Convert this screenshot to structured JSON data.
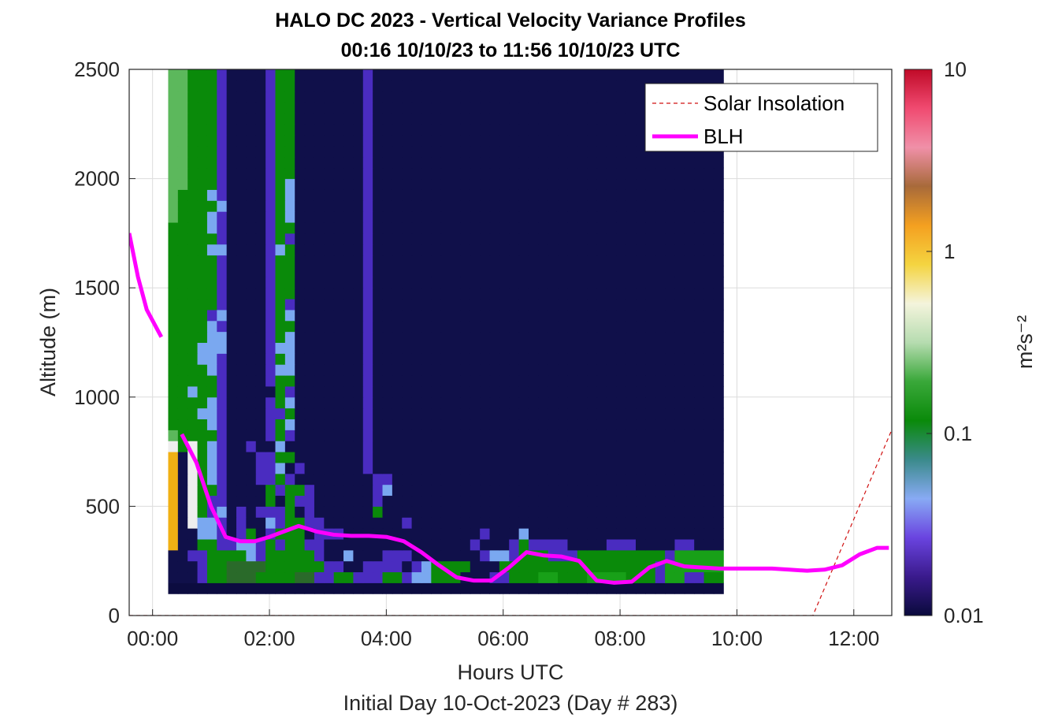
{
  "chart_data": {
    "type": "heatmap",
    "title": "HALO DC 2023 - Vertical Velocity Variance Profiles",
    "subtitle": "00:16 10/10/23 to 11:56 10/10/23  UTC",
    "xlabel": "Hours UTC",
    "xlabel2": "Initial Day 10-Oct-2023 (Day # 283)",
    "ylabel": "Altitude (m)",
    "xlim": [
      -0.4,
      12.65
    ],
    "ylim": [
      0,
      2500
    ],
    "x_ticks": [
      0,
      2,
      4,
      6,
      8,
      10,
      12
    ],
    "x_tick_labels": [
      "00:00",
      "02:00",
      "04:00",
      "06:00",
      "08:00",
      "10:00",
      "12:00"
    ],
    "y_ticks": [
      0,
      500,
      1000,
      1500,
      2000,
      2500
    ],
    "y_tick_labels": [
      "0",
      "500",
      "1000",
      "1500",
      "2000",
      "2500"
    ],
    "grid": true,
    "legend_position": "top-right",
    "colorbar": {
      "label": "m²s⁻²",
      "scale": "log",
      "range": [
        0.01,
        10
      ],
      "ticks": [
        0.01,
        0.1,
        1,
        10
      ],
      "tick_labels": [
        "0.01",
        "0.1",
        "1",
        "10"
      ],
      "colors": [
        "#0a0a3c",
        "#3a1a8c",
        "#6a44e0",
        "#88aaf4",
        "#3a8a8a",
        "#0a8a0a",
        "#3aa83a",
        "#b6dcb0",
        "#f4f4dc",
        "#f4d440",
        "#f4a020",
        "#a86a3a",
        "#f090a8",
        "#f04a70",
        "#c00a28"
      ]
    },
    "grid_x_start": 0.267,
    "grid_dx": 0.1667,
    "grid_y_start": 100,
    "grid_dy": 50,
    "variance_rows_bottom_to_top": [
      "0000000000000000000000000000000000000000000000000000000000000",
      "bbbpggrrrggggrrppggpppggpwwgggbbbppgggffgggffffgggpffppgggggg",
      "bbbpggrrrrggggggppbbppppbpwggggbbbggggggggggggggggpffffffggff",
      "bbppggggwpgggggpbbwbbbpppbbbbbbbpwwpgggpppgggggggggpffffffbpf",
      "abbggppwwpgpggppbbbbbbbbbbbbbbbpbbbpgppppbbbbpppbbbbppbbbbgpp",
      "abbwwpbpgbpgggbpppbbbbbbbbbbbbbbpbbbwbbbbbbbbbbbbbbbbbbbbbbpp",
      "ab.wwpbpbbwpggppbbbbbbbbpbbbbbbbbbbbbbbbbbbbbbbbbbbbbbbbbbpbp",
      "ab.gpwbpbpppgbpbbbbbbgbbbbbbbbbbbbbbbbbbbbbbbbbbbbbbbbbbbbbbb",
      "ab.gppbbbbgbgppbbbbbbpbbbbbbbbbbbbbbbbbbbbbbbbbbbbbbbbbbbbbbb",
      "ab.ggpbbbbgpggpbbbbbbpwbbbbbbbbbbbbbbbbbbbbbbbbbbbbbbbbbbbbbb",
      "ab.gwpbbbppgpbbbbbbbbppbbbbbbbbbbbbbbbbbbbbbbbbbbbbbbbbbbbbbb",
      "ab.gwpbbbppwbpbbbbbbpbbbbbbbbbbbbbbbbbbbbbbbbbbbbbbbbbbbbbbbb",
      "ab.gwpbbbppggbbbbbbbpbbbbbbbbbbbbbbbbbbbbbbbbbbbbbbbbbbbbbbbb",
      ".g.gwpbbpbbwbbbbbbbbpbbbbbbbbbbbbbbbbbbbbbbbbbbbbbbbbbbbbbbbb",
      "lggggpbbbbpgpbbbbbbbpbbbbbbbbbbbbbbbbbbbbbbbbbbbbbbbbbbbbbbbb",
      "ggggwpbbbbpgwbbbbbbbpbbbbbbbbbbbbbbbbbbbbbbbbbbbbbbbbbbbbbbbb",
      "gggwwpbbbbppgbbbbbbbpbbbbbbbbbbbbbbbbbbbbbbbbbbbbbbbbbbbbbbbb",
      "ggggwpbbbbpgwbbbbbbbpbbbbbbbbbbbbbbbbbbbbbbbbbbbbbbbbbbbbbbbb",
      "ggwggpbbbbbgpbbbbbbbpbbbbbbbbbbbbbbbbbbbbbbbbbbbbbbbbbbbbbbbb",
      "gggggpbbbbpggbbbbbbbpbbbbbbbbbbbbbbbbbbbbbbbbbbbbbbbbbbbbbbbb",
      "ggggwpbbbbpwwbbbbbbbpbbbbbbbbbbbbbbbbbbbbbbbbbbbbbbbbbbbbbbbb",
      "gggwwpbbbbpgwbbbbbbbpbbbbbbbbbbbbbbbbbbbbbbbbbbbbbbbbbbbbbbbb",
      "gggwwwbbbbpwwbbbbbbbpbbbbbbbbbbbbbbbbbbbbbbbbbbbbbbbbbbbbbbbb",
      "ggggwwbbbbpgwbbbbbbbpbbbbbbbbbbbbbbbbbbbbbbbbbbbbbbbbbbbbbbbb",
      "ggggwpbbbbpggbbbbbbbpbbbbbbbbbbbbbbbbbbbbbbbbbbbbbbbbbbbbbbbb",
      "ggggpwbbbbpgwbbbbbbbpbbbbbbbbbbbbbbbbbbbbbbbbbbbbbbbbbbbbbbbb",
      "gggggpbbbbpgpbbbbbbbpbbbbbbbbbbbbbbbbbbbbbbbbbbbbbbbbbbbbbbbb",
      "gggggpbbbbpggbbbbbbbpbbbbbbbbbbbbbbbbbbbbbbbbbbbbbbbbbbbbbbbb",
      "gggggpbbbbpggbbbbbbbpbbbbbbbbbbbbbbbbbbbbbbbbbbbbbbbbbbbbbbbb",
      "gggggpbbbbpggbbbbbbbpbbbbbbbbbbbbbbbbbbbbbbbbbbbbbbbbbbbbbbbb",
      "gggggpbbbbpggbbbbbbbpbbbbbbbbbbbbbbbbbbbbbbbbbbbbbbbbbbbbbbbb",
      "ggggwwbbbbpwgbbbbbbbpbbbbbbbbbbbbbbbbbbbbbbbbbbbbbbbbbbbbbbbb",
      "gggggpbbbbpgpbbbbbbbpbbbbbbbbbbbbbbbbbbbbbbbbbbbbbbbbbbbbbbbb",
      "ggggwpbbbbpggbbbbbbbpbbbbbbbbbbbbbbbbbbbbbbbbbbbbbbbbbbbbbbbb",
      "lgggwpbbbbpgwbbbbbbbpbbbbbbbbbbbbbbbbbbbbbbbbbbbbbbbbbbbbbbbb",
      "lggggwbbbbpgwbbbbbbbpbbbbbbbbbbbbbbbbbbbbbbbbbbbbbbbbbbbbbbbb",
      "lgggwpbbbbpgwbbbbbbbpbbbbbbbbbbbbbbbbbbbbbbbbbbbbbbbbbbbbbbbb",
      "llgggpbbbbpgwbbbbbbbpbbbbbbbbbbbbbbbbbbbbbbbbbbbbbbbbbbbbbbbb",
      "llgggpbbbbpggbbbbbbbpbbbbbbbbbbbbbbbbbbbbbbbbbbbbbbbbbbbbbbbb",
      "llgggpbbbbpggbbbbbbbpbbbbbbbbbbbbbbbbbbbbbbbbbbbbbbbbbbbbbbbb",
      "llgggpbbbbpggbbbbbbbpbbbbbbbbbbbbbbbbbbbbbbbbbbbbbbbbbbbbbbbb",
      "llgggpbbbbpggbbbbbbbpbbbbbbbbbbbbbbbbbbbbbbbbbbbbbbbbbbbbbbbb",
      "llgggpbbbbpggbbbbbbbpbbbbbbbbbbbbbbbbbbbbbbbbbbbbbbbbbbbbbbbb",
      "llgggpbbbbpggbbbbbbbpbbbbbbbbbbbbbbbbbbbbbbbbbbbbbbbbbbbbbbbb",
      "llgggpbbbbpggbbbbbbbpbbbbbbbbbbbbbbbbbbbbbbbbbbbbbbbbbbbbbbbb",
      "llgggpbbbbpggbbbbbbbpbbbbbbbbbbbbbbbbbbbbbbbbbbbbbbbbbbbbbbbb",
      "llgggpbbbbpggbbbbbbbpbbbbbbbbbbbbbbbbbbbbbbbbbbbbbbbbbbbbbbbb",
      "llgggpbbbbpggbbbbbbbpbbbbbbbbbbbbbbbbbbbbbbbbbbbbbbbbbbbbbbbb"
    ],
    "series": [
      {
        "name": "Solar Insolation",
        "color": "#d01010",
        "style": "dashed",
        "x": [
          -0.4,
          11.3,
          12.65
        ],
        "y": [
          0,
          0,
          850
        ]
      },
      {
        "name": "BLH",
        "color": "#ff00ff",
        "style": "solid",
        "segments": [
          {
            "x": [
              -0.4,
              -0.25,
              -0.1,
              0.15
            ],
            "y": [
              1750,
              1550,
              1400,
              1275
            ]
          },
          {
            "x": [
              0.5,
              0.75,
              1.0,
              1.25,
              1.5,
              1.75,
              2.0,
              2.25,
              2.5,
              2.8,
              3.1,
              3.4,
              3.7,
              4.0,
              4.3,
              4.6,
              4.9,
              5.2,
              5.5,
              5.8,
              6.1,
              6.4,
              6.7,
              7.0,
              7.3,
              7.6,
              7.9,
              8.2,
              8.5,
              8.8,
              9.1,
              9.4,
              9.7,
              10.0,
              10.3,
              10.6,
              10.9,
              11.2,
              11.5,
              11.8,
              12.1,
              12.4,
              12.6
            ]
          },
          {
            "x": [],
            "y": []
          }
        ]
      }
    ]
  }
}
